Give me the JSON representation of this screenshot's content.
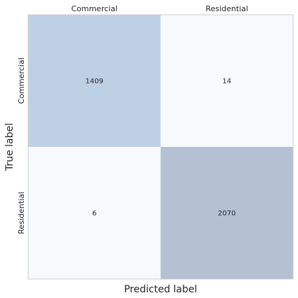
{
  "chart_data": {
    "type": "heatmap",
    "xlabel": "Predicted label",
    "ylabel": "True label",
    "x_categories": [
      "Commercial",
      "Residential"
    ],
    "y_categories": [
      "Commercial",
      "Residential"
    ],
    "values": [
      [
        1409,
        14
      ],
      [
        6,
        2070
      ]
    ],
    "x_tick_position": "top",
    "grid": false,
    "colors": {
      "high": "#b5c1d3",
      "mid": "#c3d9ed",
      "low": "#f7fafd",
      "frame": "#cccccc"
    }
  }
}
